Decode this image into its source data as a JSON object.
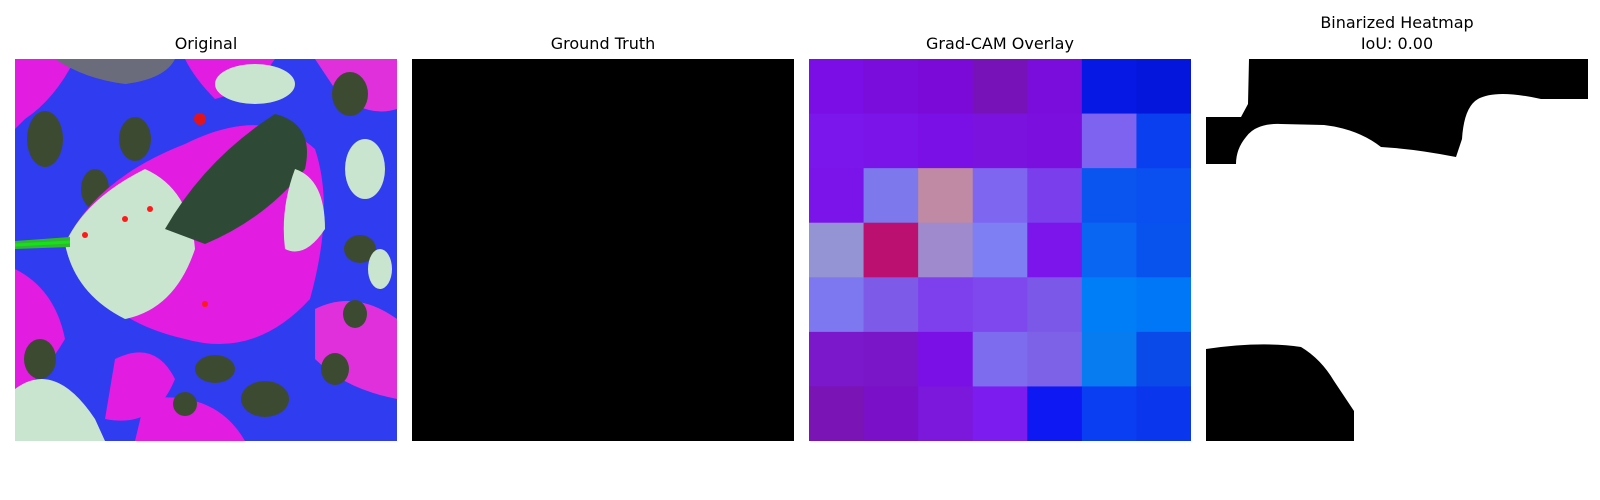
{
  "panels": [
    {
      "title": "Original"
    },
    {
      "title": "Ground Truth"
    },
    {
      "title": "Grad-CAM Overlay"
    },
    {
      "title": "Binarized Heatmap",
      "subtitle": "IoU: 0.00"
    }
  ],
  "gradcam_grid_colors": [
    [
      "#7b0de6",
      "#7a0ddc",
      "#7b0ad8",
      "#7712b8",
      "#7a0ddc",
      "#0618e4",
      "#0516dc"
    ],
    [
      "#7b16ec",
      "#7b14e8",
      "#7b10e6",
      "#7c12de",
      "#7b10de",
      "#7e62f0",
      "#0a3ff0"
    ],
    [
      "#7b14ea",
      "#7d78ec",
      "#c08aa4",
      "#7e66f0",
      "#7b3eec",
      "#0a55f0",
      "#0a4ff0"
    ],
    [
      "#9494d4",
      "#bc1070",
      "#9e8acc",
      "#7e7ff2",
      "#7c14ec",
      "#0866f2",
      "#0852ee"
    ],
    [
      "#7e78f0",
      "#7e5ae8",
      "#7e40ec",
      "#7e48ee",
      "#7c58e8",
      "#007ef8",
      "#0077f6"
    ],
    [
      "#7b18cc",
      "#7b16c8",
      "#7b10e6",
      "#7e6cee",
      "#7d62e8",
      "#077cf0",
      "#0a4ae8"
    ],
    [
      "#7a14b4",
      "#7a10c8",
      "#7b18dc",
      "#7c1cee",
      "#0e18f2",
      "#0a3ef2",
      "#0a36ee"
    ]
  ]
}
